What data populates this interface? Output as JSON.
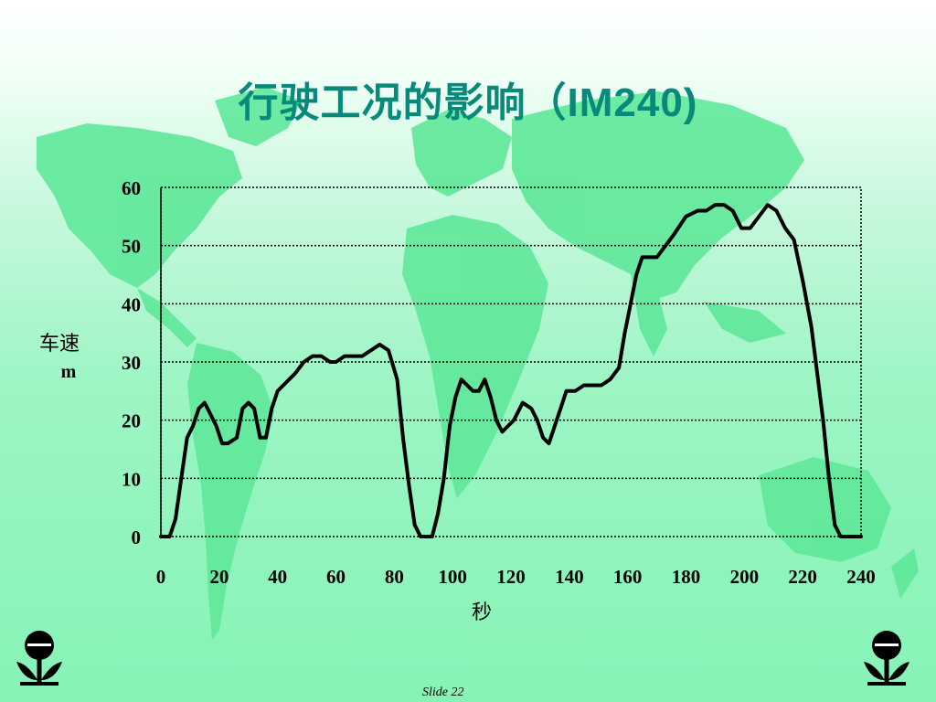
{
  "slide": {
    "title": "行驶工况的影响（IM240)",
    "slide_number": "Slide 22",
    "background_color": "#8ff4bd",
    "map_color": "#5fe89a",
    "title_color": "#078a7a"
  },
  "logos": [
    {
      "icon": "agency-flower-logo-icon"
    },
    {
      "icon": "agency-flower-logo-icon"
    }
  ],
  "chart_data": {
    "type": "line",
    "title": "",
    "xlabel": "秒",
    "ylabel": "车速 m",
    "xlim": [
      0,
      240
    ],
    "ylim": [
      0,
      60
    ],
    "x_ticks": [
      "0",
      "20",
      "40",
      "60",
      "80",
      "100",
      "120",
      "140",
      "160",
      "180",
      "200",
      "220",
      "240"
    ],
    "y_ticks": [
      "0",
      "10",
      "20",
      "30",
      "40",
      "50",
      "60"
    ],
    "grid": "horizontal dotted",
    "legend": "none",
    "line_color": "#000000",
    "series": [
      {
        "x": [
          0,
          3,
          5,
          7,
          9,
          11,
          13,
          15,
          17,
          19,
          21,
          23,
          26,
          28,
          30,
          32,
          34,
          36,
          38,
          40,
          42,
          44,
          46,
          49,
          52,
          55,
          58,
          60,
          63,
          66,
          69,
          72,
          75,
          78,
          81,
          83,
          85,
          87,
          89,
          91,
          93,
          95,
          97,
          99,
          101,
          103,
          105,
          107,
          109,
          111,
          113,
          115,
          117,
          119,
          121,
          124,
          127,
          129,
          131,
          133,
          135,
          137,
          139,
          142,
          145,
          148,
          151,
          154,
          157,
          159,
          161,
          163,
          165,
          167,
          170,
          173,
          176,
          180,
          184,
          187,
          190,
          193,
          196,
          199,
          202,
          205,
          208,
          211,
          214,
          217,
          220,
          223,
          225,
          227,
          229,
          231,
          233,
          235,
          237,
          239,
          240
        ],
        "y": [
          0,
          0,
          3,
          10,
          17,
          19,
          22,
          23,
          21,
          19,
          16,
          16,
          17,
          22,
          23,
          22,
          17,
          17,
          22,
          25,
          26,
          27,
          28,
          30,
          31,
          31,
          30,
          30,
          31,
          31,
          31,
          32,
          33,
          32,
          27,
          17,
          9,
          2,
          0,
          0,
          0,
          4,
          10,
          19,
          24,
          27,
          26,
          25,
          25,
          27,
          24,
          20,
          18,
          19,
          20,
          23,
          22,
          20,
          17,
          16,
          19,
          22,
          25,
          25,
          26,
          26,
          26,
          27,
          29,
          35,
          40,
          45,
          48,
          48,
          48,
          50,
          52,
          55,
          56,
          56,
          57,
          57,
          56,
          53,
          53,
          55,
          57,
          56,
          53,
          51,
          44,
          36,
          28,
          20,
          10,
          2,
          0,
          0,
          0,
          0,
          0
        ]
      }
    ]
  }
}
